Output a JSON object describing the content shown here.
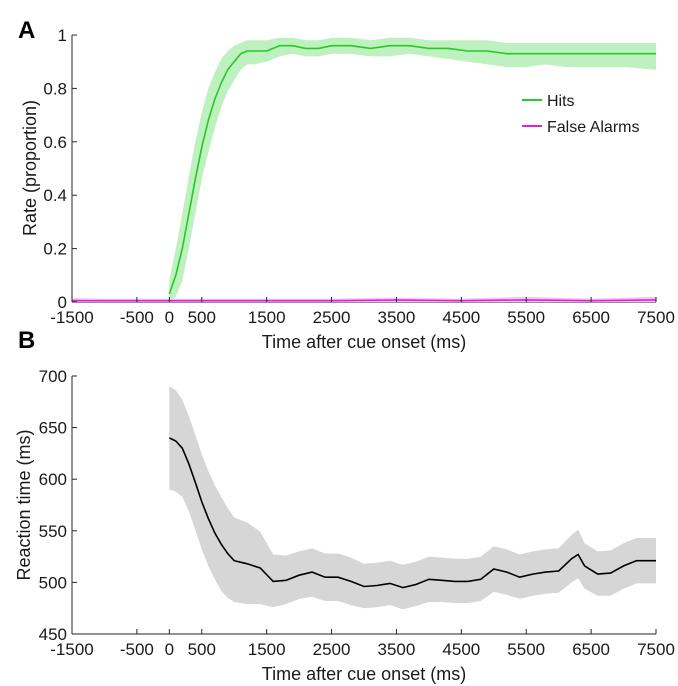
{
  "chart_data": [
    {
      "panel": "A",
      "type": "line",
      "xlabel": "Time after cue onset (ms)",
      "ylabel": "Rate (proportion)",
      "xlim": [
        -1500,
        7500
      ],
      "ylim": [
        0,
        1
      ],
      "xticks": [
        -1500,
        -500,
        0,
        500,
        1500,
        2500,
        3500,
        4500,
        5500,
        6500,
        7500
      ],
      "yticks": [
        0,
        0.2,
        0.4,
        0.6,
        0.8,
        1
      ],
      "ytick_labels": [
        "0",
        "0.2",
        "0.4",
        "0.6",
        "0.8",
        "1"
      ],
      "legend_position": "upper-right",
      "series": [
        {
          "name": "Hits",
          "color": "#22cc22",
          "band_color": "#bff0bf",
          "x": [
            0,
            100,
            200,
            300,
            400,
            500,
            600,
            700,
            800,
            900,
            1000,
            1100,
            1200,
            1300,
            1500,
            1700,
            1900,
            2100,
            2300,
            2500,
            2800,
            3100,
            3400,
            3700,
            4000,
            4300,
            4600,
            4900,
            5200,
            5500,
            5800,
            6100,
            6400,
            6700,
            7000,
            7500
          ],
          "y": [
            0.03,
            0.1,
            0.2,
            0.33,
            0.46,
            0.58,
            0.68,
            0.76,
            0.82,
            0.87,
            0.9,
            0.93,
            0.94,
            0.94,
            0.94,
            0.96,
            0.96,
            0.95,
            0.95,
            0.96,
            0.96,
            0.95,
            0.96,
            0.96,
            0.95,
            0.95,
            0.94,
            0.94,
            0.93,
            0.93,
            0.93,
            0.93,
            0.93,
            0.93,
            0.93,
            0.93
          ],
          "lower": [
            0.0,
            0.02,
            0.08,
            0.2,
            0.33,
            0.46,
            0.56,
            0.65,
            0.73,
            0.79,
            0.83,
            0.87,
            0.89,
            0.89,
            0.9,
            0.92,
            0.93,
            0.92,
            0.92,
            0.93,
            0.93,
            0.92,
            0.92,
            0.93,
            0.92,
            0.91,
            0.9,
            0.89,
            0.88,
            0.88,
            0.89,
            0.88,
            0.88,
            0.88,
            0.88,
            0.87
          ],
          "upper": [
            0.08,
            0.2,
            0.33,
            0.47,
            0.6,
            0.71,
            0.8,
            0.86,
            0.91,
            0.94,
            0.96,
            0.97,
            0.98,
            0.98,
            0.98,
            0.99,
            0.99,
            0.98,
            0.98,
            0.99,
            0.99,
            0.98,
            0.99,
            0.99,
            0.98,
            0.98,
            0.98,
            0.98,
            0.97,
            0.97,
            0.97,
            0.97,
            0.97,
            0.97,
            0.97,
            0.97
          ]
        },
        {
          "name": "False Alarms",
          "color": "#dd22dd",
          "band_color": "#f6c6f6",
          "x": [
            -1500,
            -1000,
            -500,
            0,
            500,
            1000,
            1500,
            2500,
            3500,
            4500,
            5500,
            6500,
            7500
          ],
          "y": [
            0.005,
            0.005,
            0.005,
            0.005,
            0.005,
            0.005,
            0.005,
            0.005,
            0.007,
            0.005,
            0.008,
            0.005,
            0.008
          ],
          "lower": [
            0,
            0,
            0,
            0,
            0,
            0,
            0,
            0,
            0,
            0,
            0,
            0,
            0
          ],
          "upper": [
            0.015,
            0.012,
            0.012,
            0.012,
            0.012,
            0.012,
            0.012,
            0.012,
            0.016,
            0.012,
            0.02,
            0.012,
            0.02
          ]
        }
      ]
    },
    {
      "panel": "B",
      "type": "line",
      "xlabel": "Time after cue onset (ms)",
      "ylabel": "Reaction time (ms)",
      "xlim": [
        -1500,
        7500
      ],
      "ylim": [
        450,
        700
      ],
      "xticks": [
        -1500,
        -500,
        0,
        500,
        1500,
        2500,
        3500,
        4500,
        5500,
        6500,
        7500
      ],
      "yticks": [
        450,
        500,
        550,
        600,
        650,
        700
      ],
      "ytick_labels": [
        "450",
        "500",
        "550",
        "600",
        "650",
        "700"
      ],
      "series": [
        {
          "name": "",
          "color": "#000000",
          "band_color": "#d6d6d6",
          "x": [
            0,
            100,
            200,
            300,
            400,
            500,
            600,
            700,
            800,
            900,
            1000,
            1200,
            1400,
            1600,
            1800,
            2000,
            2200,
            2400,
            2600,
            2800,
            3000,
            3200,
            3400,
            3600,
            3800,
            4000,
            4200,
            4400,
            4600,
            4800,
            5000,
            5200,
            5400,
            5600,
            5800,
            6000,
            6200,
            6300,
            6400,
            6600,
            6800,
            7000,
            7200,
            7500
          ],
          "y": [
            640,
            637,
            630,
            615,
            597,
            578,
            562,
            548,
            537,
            528,
            521,
            518,
            514,
            501,
            502,
            507,
            510,
            505,
            505,
            501,
            496,
            497,
            499,
            495,
            498,
            503,
            502,
            501,
            501,
            503,
            513,
            510,
            505,
            508,
            510,
            511,
            523,
            527,
            516,
            508,
            509,
            516,
            521,
            521
          ],
          "lower": [
            590,
            588,
            583,
            569,
            551,
            532,
            516,
            503,
            492,
            485,
            481,
            479,
            479,
            476,
            479,
            484,
            486,
            482,
            482,
            478,
            475,
            476,
            478,
            474,
            477,
            481,
            481,
            480,
            480,
            482,
            491,
            488,
            484,
            487,
            489,
            490,
            500,
            504,
            494,
            487,
            487,
            494,
            499,
            499
          ],
          "upper": [
            690,
            686,
            677,
            661,
            643,
            624,
            608,
            594,
            583,
            572,
            563,
            558,
            549,
            527,
            526,
            530,
            533,
            528,
            528,
            524,
            518,
            519,
            521,
            517,
            520,
            525,
            524,
            523,
            523,
            525,
            535,
            532,
            527,
            530,
            532,
            533,
            546,
            551,
            538,
            530,
            531,
            538,
            543,
            543
          ]
        }
      ]
    }
  ]
}
